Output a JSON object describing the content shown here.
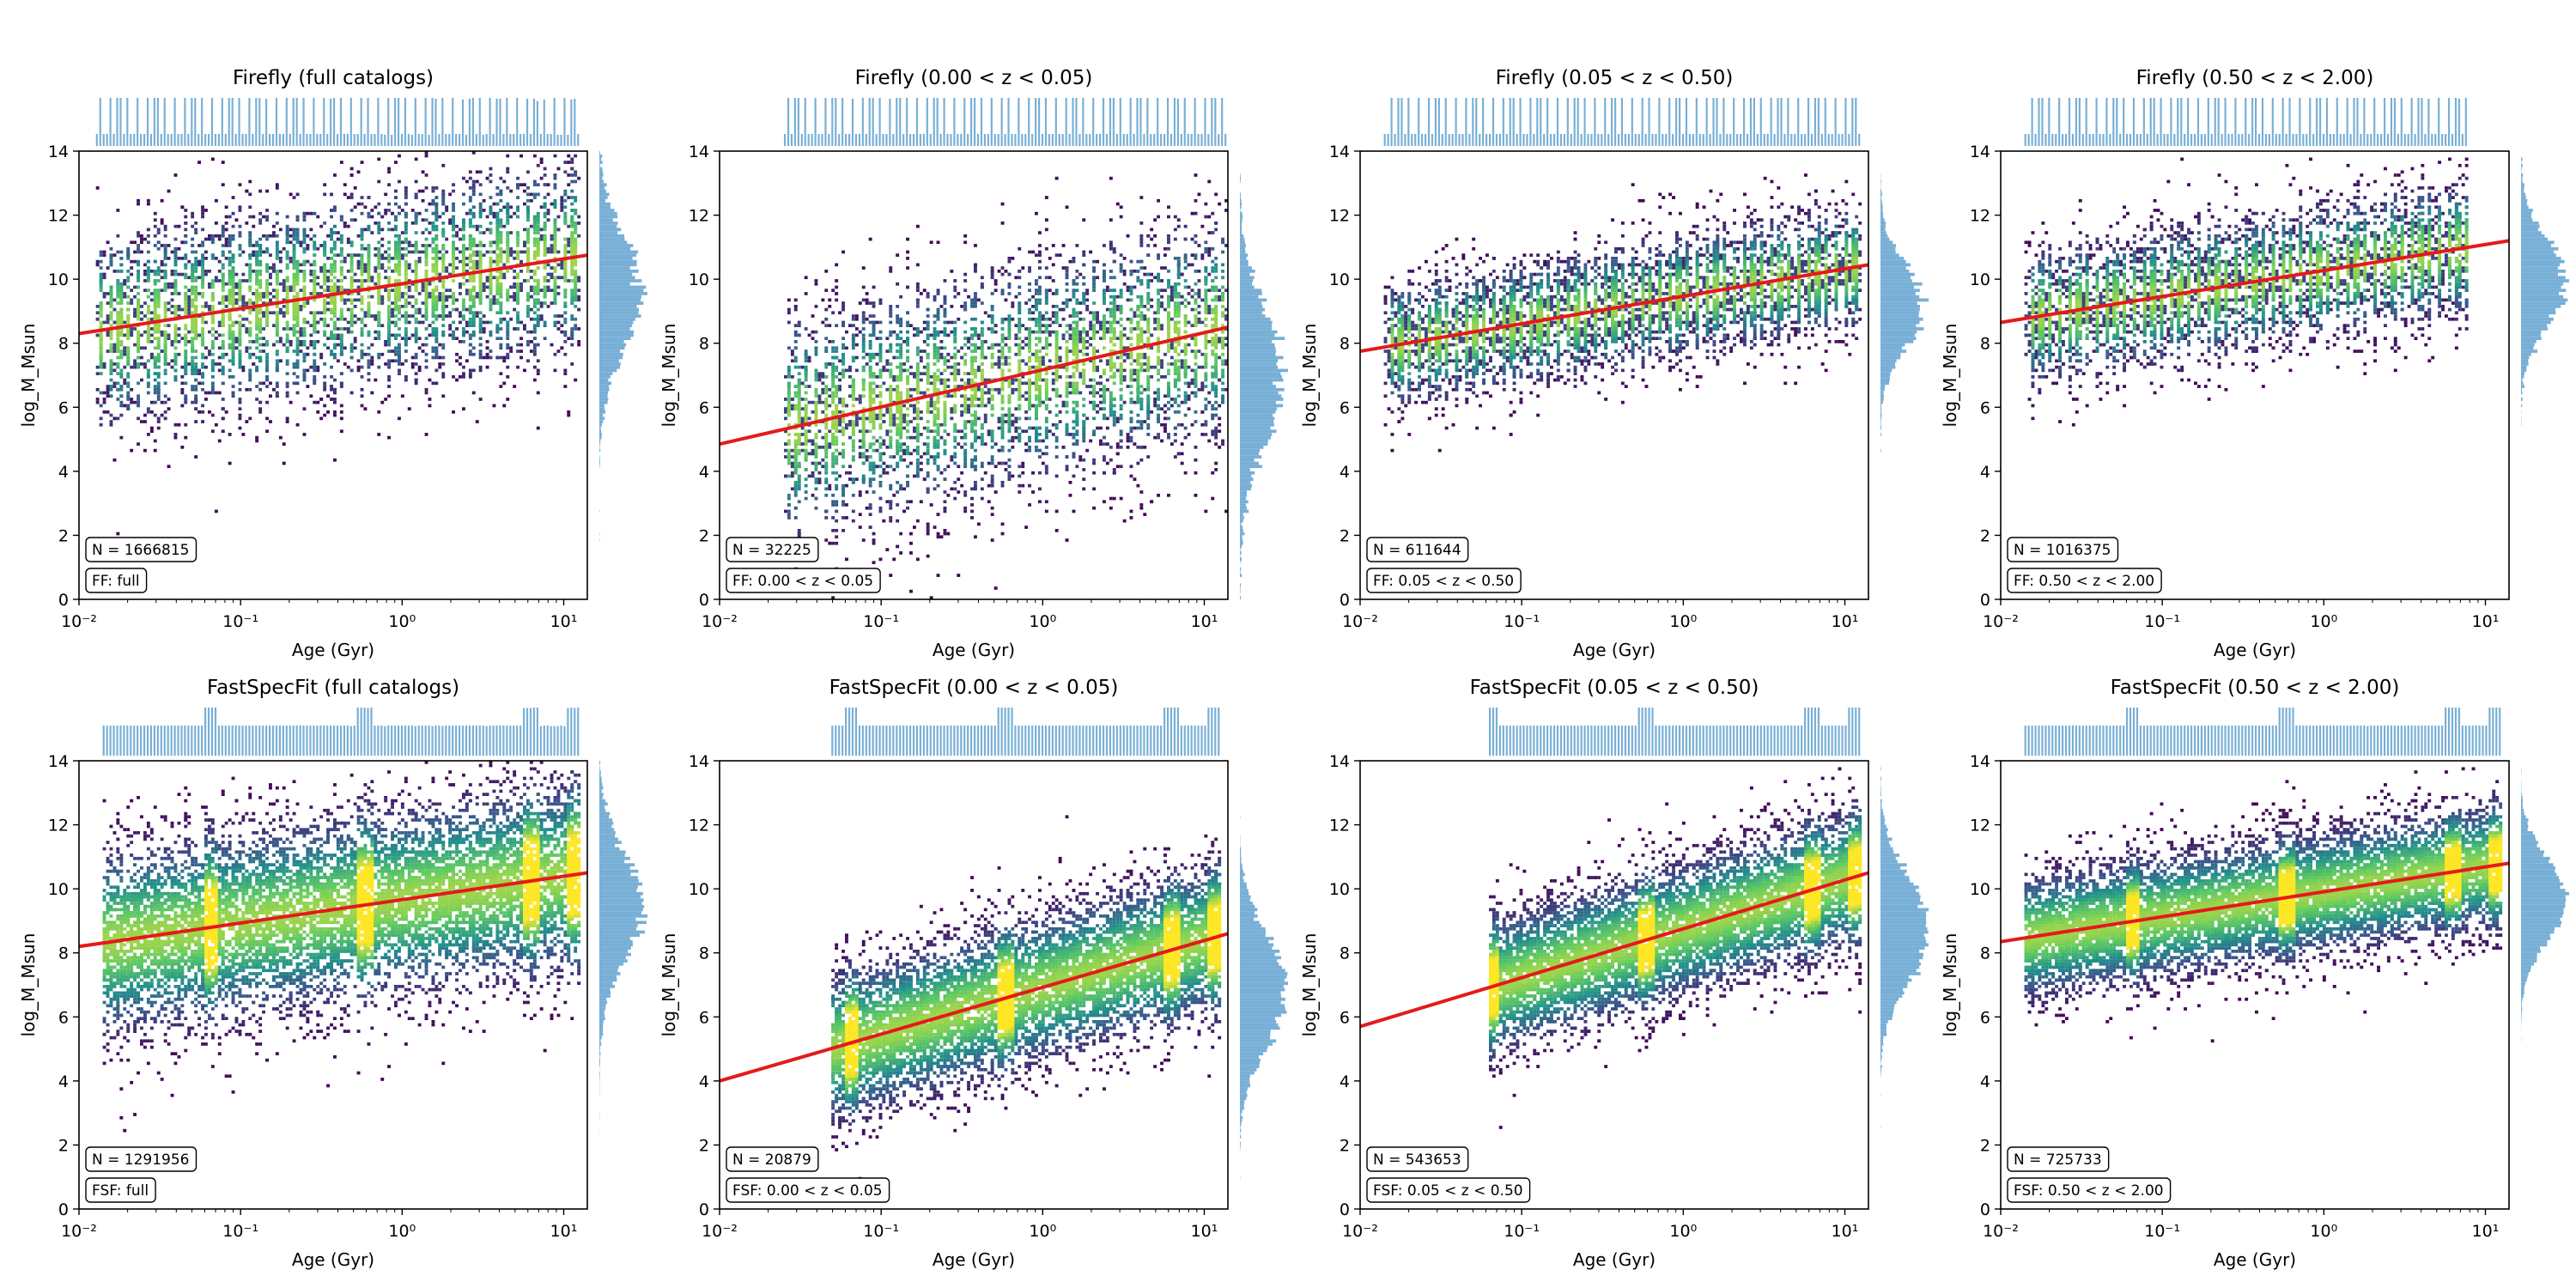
{
  "figure": {
    "xlabel": "Age (Gyr)",
    "ylabel": "log_M_Msun",
    "colors": {
      "fit_line": "#e41a1c",
      "marginal": "#78afd6",
      "frame": "#000000"
    }
  },
  "chart_data": [
    {
      "type": "heatmap",
      "title": "Firefly (full catalogs)",
      "xscale": "log",
      "xlim": [
        0.01,
        14
      ],
      "ylim": [
        0,
        14
      ],
      "xticks": [
        "10⁻²",
        "10⁻¹",
        "10⁰",
        "10¹"
      ],
      "yticks": [
        "0",
        "2",
        "4",
        "6",
        "8",
        "10",
        "12",
        "14"
      ],
      "n_label": "N = 1666815",
      "tag_label": "FF: full",
      "fit": {
        "x": [
          0.01,
          14
        ],
        "y": [
          8.3,
          10.75
        ]
      }
    },
    {
      "type": "heatmap",
      "title": "Firefly (0.00 < z < 0.05)",
      "xscale": "log",
      "xlim": [
        0.01,
        14
      ],
      "ylim": [
        0,
        14
      ],
      "xticks": [
        "10⁻²",
        "10⁻¹",
        "10⁰",
        "10¹"
      ],
      "yticks": [
        "0",
        "2",
        "4",
        "6",
        "8",
        "10",
        "12",
        "14"
      ],
      "n_label": "N = 32225",
      "tag_label": "FF: 0.00 < z < 0.05",
      "fit": {
        "x": [
          0.01,
          14
        ],
        "y": [
          4.85,
          8.5
        ]
      }
    },
    {
      "type": "heatmap",
      "title": "Firefly (0.05 < z < 0.50)",
      "xscale": "log",
      "xlim": [
        0.01,
        14
      ],
      "ylim": [
        0,
        14
      ],
      "xticks": [
        "10⁻²",
        "10⁻¹",
        "10⁰",
        "10¹"
      ],
      "yticks": [
        "0",
        "2",
        "4",
        "6",
        "8",
        "10",
        "12",
        "14"
      ],
      "n_label": "N = 611644",
      "tag_label": "FF: 0.05 < z < 0.50",
      "fit": {
        "x": [
          0.01,
          14
        ],
        "y": [
          7.75,
          10.45
        ]
      }
    },
    {
      "type": "heatmap",
      "title": "Firefly (0.50 < z < 2.00)",
      "xscale": "log",
      "xlim": [
        0.01,
        14
      ],
      "ylim": [
        0,
        14
      ],
      "xticks": [
        "10⁻²",
        "10⁻¹",
        "10⁰",
        "10¹"
      ],
      "yticks": [
        "0",
        "2",
        "4",
        "6",
        "8",
        "10",
        "12",
        "14"
      ],
      "n_label": "N = 1016375",
      "tag_label": "FF: 0.50 < z < 2.00",
      "fit": {
        "x": [
          0.01,
          14
        ],
        "y": [
          8.65,
          11.2
        ]
      }
    },
    {
      "type": "heatmap",
      "title": "FastSpecFit (full catalogs)",
      "xscale": "log",
      "xlim": [
        0.01,
        14
      ],
      "ylim": [
        0,
        14
      ],
      "xticks": [
        "10⁻²",
        "10⁻¹",
        "10⁰",
        "10¹"
      ],
      "yticks": [
        "0",
        "2",
        "4",
        "6",
        "8",
        "10",
        "12",
        "14"
      ],
      "n_label": "N = 1291956",
      "tag_label": "FSF: full",
      "fit": {
        "x": [
          0.01,
          14
        ],
        "y": [
          8.2,
          10.5
        ]
      }
    },
    {
      "type": "heatmap",
      "title": "FastSpecFit (0.00 < z < 0.05)",
      "xscale": "log",
      "xlim": [
        0.01,
        14
      ],
      "ylim": [
        0,
        14
      ],
      "xticks": [
        "10⁻²",
        "10⁻¹",
        "10⁰",
        "10¹"
      ],
      "yticks": [
        "0",
        "2",
        "4",
        "6",
        "8",
        "10",
        "12",
        "14"
      ],
      "n_label": "N = 20879",
      "tag_label": "FSF: 0.00 < z < 0.05",
      "fit": {
        "x": [
          0.01,
          14
        ],
        "y": [
          4.0,
          8.6
        ]
      }
    },
    {
      "type": "heatmap",
      "title": "FastSpecFit (0.05 < z < 0.50)",
      "xscale": "log",
      "xlim": [
        0.01,
        14
      ],
      "ylim": [
        0,
        14
      ],
      "xticks": [
        "10⁻²",
        "10⁻¹",
        "10⁰",
        "10¹"
      ],
      "yticks": [
        "0",
        "2",
        "4",
        "6",
        "8",
        "10",
        "12",
        "14"
      ],
      "n_label": "N = 543653",
      "tag_label": "FSF: 0.05 < z < 0.50",
      "fit": {
        "x": [
          0.01,
          14
        ],
        "y": [
          5.7,
          10.5
        ]
      }
    },
    {
      "type": "heatmap",
      "title": "FastSpecFit (0.50 < z < 2.00)",
      "xscale": "log",
      "xlim": [
        0.01,
        14
      ],
      "ylim": [
        0,
        14
      ],
      "xticks": [
        "10⁻²",
        "10⁻¹",
        "10⁰",
        "10¹"
      ],
      "yticks": [
        "0",
        "2",
        "4",
        "6",
        "8",
        "10",
        "12",
        "14"
      ],
      "n_label": "N = 725733",
      "tag_label": "FSF: 0.50 < z < 2.00",
      "fit": {
        "x": [
          0.01,
          14
        ],
        "y": [
          8.35,
          10.8
        ]
      }
    }
  ]
}
